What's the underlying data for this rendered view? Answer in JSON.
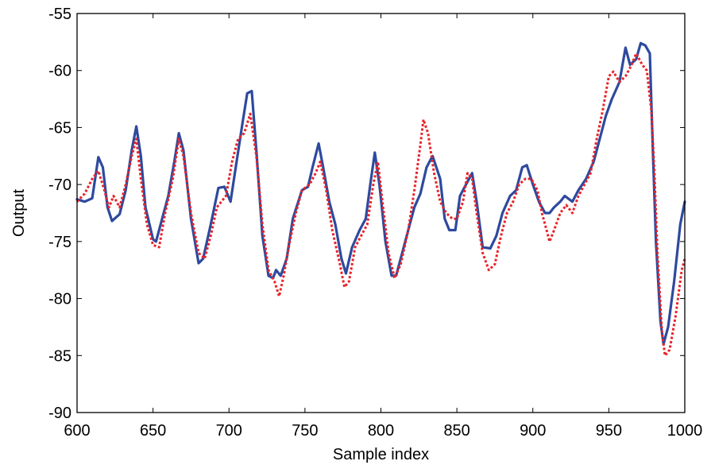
{
  "chart_data": {
    "type": "line",
    "title": "",
    "xlabel": "Sample index",
    "ylabel": "Output",
    "xlim": [
      600,
      1000
    ],
    "ylim": [
      -90,
      -55
    ],
    "x_ticks": [
      600,
      650,
      700,
      750,
      800,
      850,
      900,
      950,
      1000
    ],
    "y_ticks": [
      -55,
      -60,
      -65,
      -70,
      -75,
      -80,
      -85,
      -90
    ],
    "grid": false,
    "legend": "none",
    "series": [
      {
        "color": "#2e4a9e",
        "style": "solid",
        "points": [
          [
            600,
            -71.3
          ],
          [
            605,
            -71.5
          ],
          [
            610,
            -71.2
          ],
          [
            614,
            -67.6
          ],
          [
            617,
            -68.5
          ],
          [
            620,
            -72.0
          ],
          [
            623,
            -73.2
          ],
          [
            628,
            -72.6
          ],
          [
            632,
            -70.5
          ],
          [
            636,
            -67.0
          ],
          [
            639,
            -64.9
          ],
          [
            642,
            -67.5
          ],
          [
            645,
            -72.0
          ],
          [
            650,
            -74.8
          ],
          [
            652,
            -75.0
          ],
          [
            656,
            -73.0
          ],
          [
            660,
            -71.0
          ],
          [
            664,
            -68.0
          ],
          [
            667,
            -65.5
          ],
          [
            670,
            -67.0
          ],
          [
            675,
            -73.0
          ],
          [
            680,
            -76.9
          ],
          [
            683,
            -76.5
          ],
          [
            688,
            -73.5
          ],
          [
            693,
            -70.3
          ],
          [
            697,
            -70.2
          ],
          [
            701,
            -71.5
          ],
          [
            705,
            -68.0
          ],
          [
            709,
            -64.5
          ],
          [
            712,
            -62.0
          ],
          [
            715,
            -61.8
          ],
          [
            718,
            -67.0
          ],
          [
            722,
            -74.5
          ],
          [
            726,
            -78.0
          ],
          [
            729,
            -78.2
          ],
          [
            731,
            -77.5
          ],
          [
            734,
            -78.0
          ],
          [
            738,
            -76.5
          ],
          [
            742,
            -73.0
          ],
          [
            748,
            -70.5
          ],
          [
            752,
            -70.2
          ],
          [
            755,
            -68.5
          ],
          [
            759,
            -66.4
          ],
          [
            762,
            -68.5
          ],
          [
            766,
            -71.5
          ],
          [
            770,
            -73.5
          ],
          [
            774,
            -76.5
          ],
          [
            777,
            -77.8
          ],
          [
            781,
            -75.5
          ],
          [
            786,
            -74.0
          ],
          [
            790,
            -73.0
          ],
          [
            793,
            -70.0
          ],
          [
            796,
            -67.2
          ],
          [
            799,
            -70.0
          ],
          [
            803,
            -75.0
          ],
          [
            807,
            -78.0
          ],
          [
            810,
            -78.0
          ],
          [
            815,
            -75.5
          ],
          [
            819,
            -73.5
          ],
          [
            822,
            -72.0
          ],
          [
            826,
            -70.8
          ],
          [
            830,
            -68.5
          ],
          [
            834,
            -67.5
          ],
          [
            839,
            -69.5
          ],
          [
            842,
            -73.0
          ],
          [
            845,
            -74.0
          ],
          [
            849,
            -74.0
          ],
          [
            852,
            -71.0
          ],
          [
            856,
            -70.0
          ],
          [
            860,
            -69.0
          ],
          [
            863,
            -71.5
          ],
          [
            867,
            -75.5
          ],
          [
            872,
            -75.6
          ],
          [
            876,
            -74.5
          ],
          [
            880,
            -72.5
          ],
          [
            885,
            -71.0
          ],
          [
            889,
            -70.5
          ],
          [
            893,
            -68.5
          ],
          [
            896,
            -68.3
          ],
          [
            900,
            -70.0
          ],
          [
            904,
            -71.5
          ],
          [
            908,
            -72.5
          ],
          [
            911,
            -72.5
          ],
          [
            914,
            -72.0
          ],
          [
            918,
            -71.5
          ],
          [
            921,
            -71.0
          ],
          [
            926,
            -71.5
          ],
          [
            930,
            -70.5
          ],
          [
            935,
            -69.5
          ],
          [
            940,
            -68.0
          ],
          [
            944,
            -66.0
          ],
          [
            948,
            -64.0
          ],
          [
            952,
            -62.5
          ],
          [
            957,
            -61.0
          ],
          [
            961,
            -58.0
          ],
          [
            964,
            -59.5
          ],
          [
            968,
            -59.0
          ],
          [
            971,
            -57.6
          ],
          [
            974,
            -57.8
          ],
          [
            977,
            -58.5
          ],
          [
            979,
            -67.0
          ],
          [
            981,
            -75.0
          ],
          [
            984,
            -82.0
          ],
          [
            986,
            -84.0
          ],
          [
            989,
            -82.5
          ],
          [
            993,
            -78.5
          ],
          [
            997,
            -73.5
          ],
          [
            1000,
            -71.5
          ]
        ]
      },
      {
        "color": "#e8242a",
        "style": "dotted",
        "points": [
          [
            600,
            -71.5
          ],
          [
            605,
            -70.8
          ],
          [
            610,
            -69.5
          ],
          [
            614,
            -68.8
          ],
          [
            618,
            -70.5
          ],
          [
            621,
            -72.0
          ],
          [
            624,
            -71.0
          ],
          [
            628,
            -72.0
          ],
          [
            632,
            -70.0
          ],
          [
            636,
            -67.5
          ],
          [
            639,
            -66.0
          ],
          [
            642,
            -69.5
          ],
          [
            646,
            -73.5
          ],
          [
            650,
            -75.3
          ],
          [
            654,
            -75.5
          ],
          [
            658,
            -72.5
          ],
          [
            663,
            -69.5
          ],
          [
            667,
            -66.0
          ],
          [
            670,
            -67.5
          ],
          [
            675,
            -72.5
          ],
          [
            680,
            -76.0
          ],
          [
            684,
            -76.5
          ],
          [
            688,
            -74.5
          ],
          [
            692,
            -72.0
          ],
          [
            698,
            -71.0
          ],
          [
            702,
            -68.0
          ],
          [
            706,
            -66.0
          ],
          [
            710,
            -65.5
          ],
          [
            714,
            -63.8
          ],
          [
            718,
            -67.5
          ],
          [
            722,
            -73.5
          ],
          [
            726,
            -77.5
          ],
          [
            730,
            -78.5
          ],
          [
            733,
            -79.8
          ],
          [
            736,
            -78.0
          ],
          [
            740,
            -75.0
          ],
          [
            744,
            -72.5
          ],
          [
            748,
            -70.5
          ],
          [
            753,
            -70.0
          ],
          [
            757,
            -69.0
          ],
          [
            760,
            -68.0
          ],
          [
            764,
            -70.5
          ],
          [
            768,
            -74.0
          ],
          [
            773,
            -77.0
          ],
          [
            776,
            -79.0
          ],
          [
            779,
            -78.5
          ],
          [
            783,
            -75.5
          ],
          [
            787,
            -74.5
          ],
          [
            791,
            -73.5
          ],
          [
            795,
            -70.0
          ],
          [
            798,
            -68.0
          ],
          [
            801,
            -71.5
          ],
          [
            805,
            -76.0
          ],
          [
            809,
            -78.2
          ],
          [
            813,
            -77.0
          ],
          [
            818,
            -74.0
          ],
          [
            822,
            -70.5
          ],
          [
            826,
            -66.5
          ],
          [
            828,
            -64.3
          ],
          [
            831,
            -65.5
          ],
          [
            835,
            -69.0
          ],
          [
            839,
            -71.5
          ],
          [
            843,
            -72.5
          ],
          [
            847,
            -73.0
          ],
          [
            850,
            -73.0
          ],
          [
            854,
            -71.5
          ],
          [
            857,
            -69.0
          ],
          [
            860,
            -69.5
          ],
          [
            863,
            -72.5
          ],
          [
            867,
            -76.0
          ],
          [
            871,
            -77.5
          ],
          [
            875,
            -77.0
          ],
          [
            879,
            -74.5
          ],
          [
            883,
            -72.5
          ],
          [
            887,
            -71.5
          ],
          [
            891,
            -70.0
          ],
          [
            895,
            -69.5
          ],
          [
            899,
            -69.5
          ],
          [
            903,
            -70.5
          ],
          [
            906,
            -72.5
          ],
          [
            909,
            -74.0
          ],
          [
            911,
            -75.0
          ],
          [
            914,
            -74.0
          ],
          [
            918,
            -72.5
          ],
          [
            922,
            -71.8
          ],
          [
            926,
            -72.5
          ],
          [
            930,
            -71.0
          ],
          [
            934,
            -70.0
          ],
          [
            938,
            -69.0
          ],
          [
            942,
            -66.0
          ],
          [
            946,
            -63.5
          ],
          [
            950,
            -60.5
          ],
          [
            953,
            -60.1
          ],
          [
            957,
            -61.0
          ],
          [
            961,
            -60.5
          ],
          [
            965,
            -59.5
          ],
          [
            968,
            -58.5
          ],
          [
            972,
            -59.5
          ],
          [
            975,
            -60.0
          ],
          [
            978,
            -63.5
          ],
          [
            980,
            -69.0
          ],
          [
            982,
            -76.0
          ],
          [
            985,
            -83.0
          ],
          [
            987,
            -85.0
          ],
          [
            990,
            -84.5
          ],
          [
            994,
            -81.5
          ],
          [
            998,
            -77.5
          ],
          [
            1000,
            -76.5
          ]
        ]
      }
    ]
  }
}
